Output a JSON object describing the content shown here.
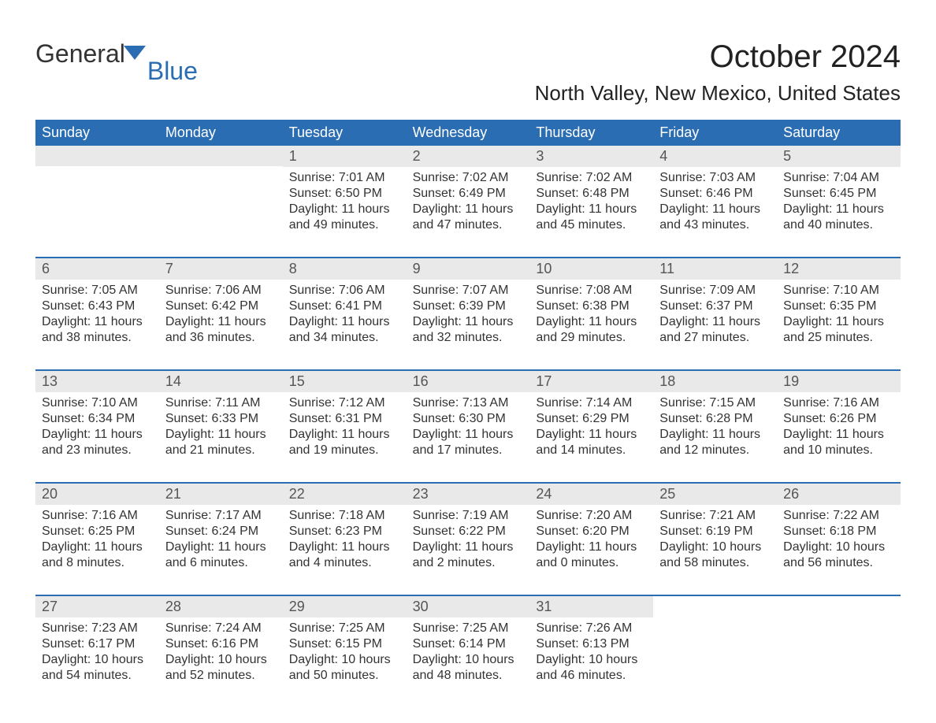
{
  "logo": {
    "text1": "General",
    "text2": "Blue",
    "flag_color": "#2b6db2"
  },
  "title": "October 2024",
  "subtitle": "North Valley, New Mexico, United States",
  "colors": {
    "header_bg": "#2b6db2",
    "header_text": "#ffffff",
    "daynum_bg": "#e9e9e9",
    "text": "#333333",
    "border": "#2b6db2",
    "page_bg": "#ffffff"
  },
  "typography": {
    "title_fontsize": 40,
    "subtitle_fontsize": 26,
    "dayheader_fontsize": 18,
    "daynum_fontsize": 18,
    "detail_fontsize": 16
  },
  "day_headers": [
    "Sunday",
    "Monday",
    "Tuesday",
    "Wednesday",
    "Thursday",
    "Friday",
    "Saturday"
  ],
  "weeks": [
    [
      null,
      null,
      {
        "num": "1",
        "sunrise": "Sunrise: 7:01 AM",
        "sunset": "Sunset: 6:50 PM",
        "daylight1": "Daylight: 11 hours",
        "daylight2": "and 49 minutes."
      },
      {
        "num": "2",
        "sunrise": "Sunrise: 7:02 AM",
        "sunset": "Sunset: 6:49 PM",
        "daylight1": "Daylight: 11 hours",
        "daylight2": "and 47 minutes."
      },
      {
        "num": "3",
        "sunrise": "Sunrise: 7:02 AM",
        "sunset": "Sunset: 6:48 PM",
        "daylight1": "Daylight: 11 hours",
        "daylight2": "and 45 minutes."
      },
      {
        "num": "4",
        "sunrise": "Sunrise: 7:03 AM",
        "sunset": "Sunset: 6:46 PM",
        "daylight1": "Daylight: 11 hours",
        "daylight2": "and 43 minutes."
      },
      {
        "num": "5",
        "sunrise": "Sunrise: 7:04 AM",
        "sunset": "Sunset: 6:45 PM",
        "daylight1": "Daylight: 11 hours",
        "daylight2": "and 40 minutes."
      }
    ],
    [
      {
        "num": "6",
        "sunrise": "Sunrise: 7:05 AM",
        "sunset": "Sunset: 6:43 PM",
        "daylight1": "Daylight: 11 hours",
        "daylight2": "and 38 minutes."
      },
      {
        "num": "7",
        "sunrise": "Sunrise: 7:06 AM",
        "sunset": "Sunset: 6:42 PM",
        "daylight1": "Daylight: 11 hours",
        "daylight2": "and 36 minutes."
      },
      {
        "num": "8",
        "sunrise": "Sunrise: 7:06 AM",
        "sunset": "Sunset: 6:41 PM",
        "daylight1": "Daylight: 11 hours",
        "daylight2": "and 34 minutes."
      },
      {
        "num": "9",
        "sunrise": "Sunrise: 7:07 AM",
        "sunset": "Sunset: 6:39 PM",
        "daylight1": "Daylight: 11 hours",
        "daylight2": "and 32 minutes."
      },
      {
        "num": "10",
        "sunrise": "Sunrise: 7:08 AM",
        "sunset": "Sunset: 6:38 PM",
        "daylight1": "Daylight: 11 hours",
        "daylight2": "and 29 minutes."
      },
      {
        "num": "11",
        "sunrise": "Sunrise: 7:09 AM",
        "sunset": "Sunset: 6:37 PM",
        "daylight1": "Daylight: 11 hours",
        "daylight2": "and 27 minutes."
      },
      {
        "num": "12",
        "sunrise": "Sunrise: 7:10 AM",
        "sunset": "Sunset: 6:35 PM",
        "daylight1": "Daylight: 11 hours",
        "daylight2": "and 25 minutes."
      }
    ],
    [
      {
        "num": "13",
        "sunrise": "Sunrise: 7:10 AM",
        "sunset": "Sunset: 6:34 PM",
        "daylight1": "Daylight: 11 hours",
        "daylight2": "and 23 minutes."
      },
      {
        "num": "14",
        "sunrise": "Sunrise: 7:11 AM",
        "sunset": "Sunset: 6:33 PM",
        "daylight1": "Daylight: 11 hours",
        "daylight2": "and 21 minutes."
      },
      {
        "num": "15",
        "sunrise": "Sunrise: 7:12 AM",
        "sunset": "Sunset: 6:31 PM",
        "daylight1": "Daylight: 11 hours",
        "daylight2": "and 19 minutes."
      },
      {
        "num": "16",
        "sunrise": "Sunrise: 7:13 AM",
        "sunset": "Sunset: 6:30 PM",
        "daylight1": "Daylight: 11 hours",
        "daylight2": "and 17 minutes."
      },
      {
        "num": "17",
        "sunrise": "Sunrise: 7:14 AM",
        "sunset": "Sunset: 6:29 PM",
        "daylight1": "Daylight: 11 hours",
        "daylight2": "and 14 minutes."
      },
      {
        "num": "18",
        "sunrise": "Sunrise: 7:15 AM",
        "sunset": "Sunset: 6:28 PM",
        "daylight1": "Daylight: 11 hours",
        "daylight2": "and 12 minutes."
      },
      {
        "num": "19",
        "sunrise": "Sunrise: 7:16 AM",
        "sunset": "Sunset: 6:26 PM",
        "daylight1": "Daylight: 11 hours",
        "daylight2": "and 10 minutes."
      }
    ],
    [
      {
        "num": "20",
        "sunrise": "Sunrise: 7:16 AM",
        "sunset": "Sunset: 6:25 PM",
        "daylight1": "Daylight: 11 hours",
        "daylight2": "and 8 minutes."
      },
      {
        "num": "21",
        "sunrise": "Sunrise: 7:17 AM",
        "sunset": "Sunset: 6:24 PM",
        "daylight1": "Daylight: 11 hours",
        "daylight2": "and 6 minutes."
      },
      {
        "num": "22",
        "sunrise": "Sunrise: 7:18 AM",
        "sunset": "Sunset: 6:23 PM",
        "daylight1": "Daylight: 11 hours",
        "daylight2": "and 4 minutes."
      },
      {
        "num": "23",
        "sunrise": "Sunrise: 7:19 AM",
        "sunset": "Sunset: 6:22 PM",
        "daylight1": "Daylight: 11 hours",
        "daylight2": "and 2 minutes."
      },
      {
        "num": "24",
        "sunrise": "Sunrise: 7:20 AM",
        "sunset": "Sunset: 6:20 PM",
        "daylight1": "Daylight: 11 hours",
        "daylight2": "and 0 minutes."
      },
      {
        "num": "25",
        "sunrise": "Sunrise: 7:21 AM",
        "sunset": "Sunset: 6:19 PM",
        "daylight1": "Daylight: 10 hours",
        "daylight2": "and 58 minutes."
      },
      {
        "num": "26",
        "sunrise": "Sunrise: 7:22 AM",
        "sunset": "Sunset: 6:18 PM",
        "daylight1": "Daylight: 10 hours",
        "daylight2": "and 56 minutes."
      }
    ],
    [
      {
        "num": "27",
        "sunrise": "Sunrise: 7:23 AM",
        "sunset": "Sunset: 6:17 PM",
        "daylight1": "Daylight: 10 hours",
        "daylight2": "and 54 minutes."
      },
      {
        "num": "28",
        "sunrise": "Sunrise: 7:24 AM",
        "sunset": "Sunset: 6:16 PM",
        "daylight1": "Daylight: 10 hours",
        "daylight2": "and 52 minutes."
      },
      {
        "num": "29",
        "sunrise": "Sunrise: 7:25 AM",
        "sunset": "Sunset: 6:15 PM",
        "daylight1": "Daylight: 10 hours",
        "daylight2": "and 50 minutes."
      },
      {
        "num": "30",
        "sunrise": "Sunrise: 7:25 AM",
        "sunset": "Sunset: 6:14 PM",
        "daylight1": "Daylight: 10 hours",
        "daylight2": "and 48 minutes."
      },
      {
        "num": "31",
        "sunrise": "Sunrise: 7:26 AM",
        "sunset": "Sunset: 6:13 PM",
        "daylight1": "Daylight: 10 hours",
        "daylight2": "and 46 minutes."
      },
      null,
      null
    ]
  ]
}
